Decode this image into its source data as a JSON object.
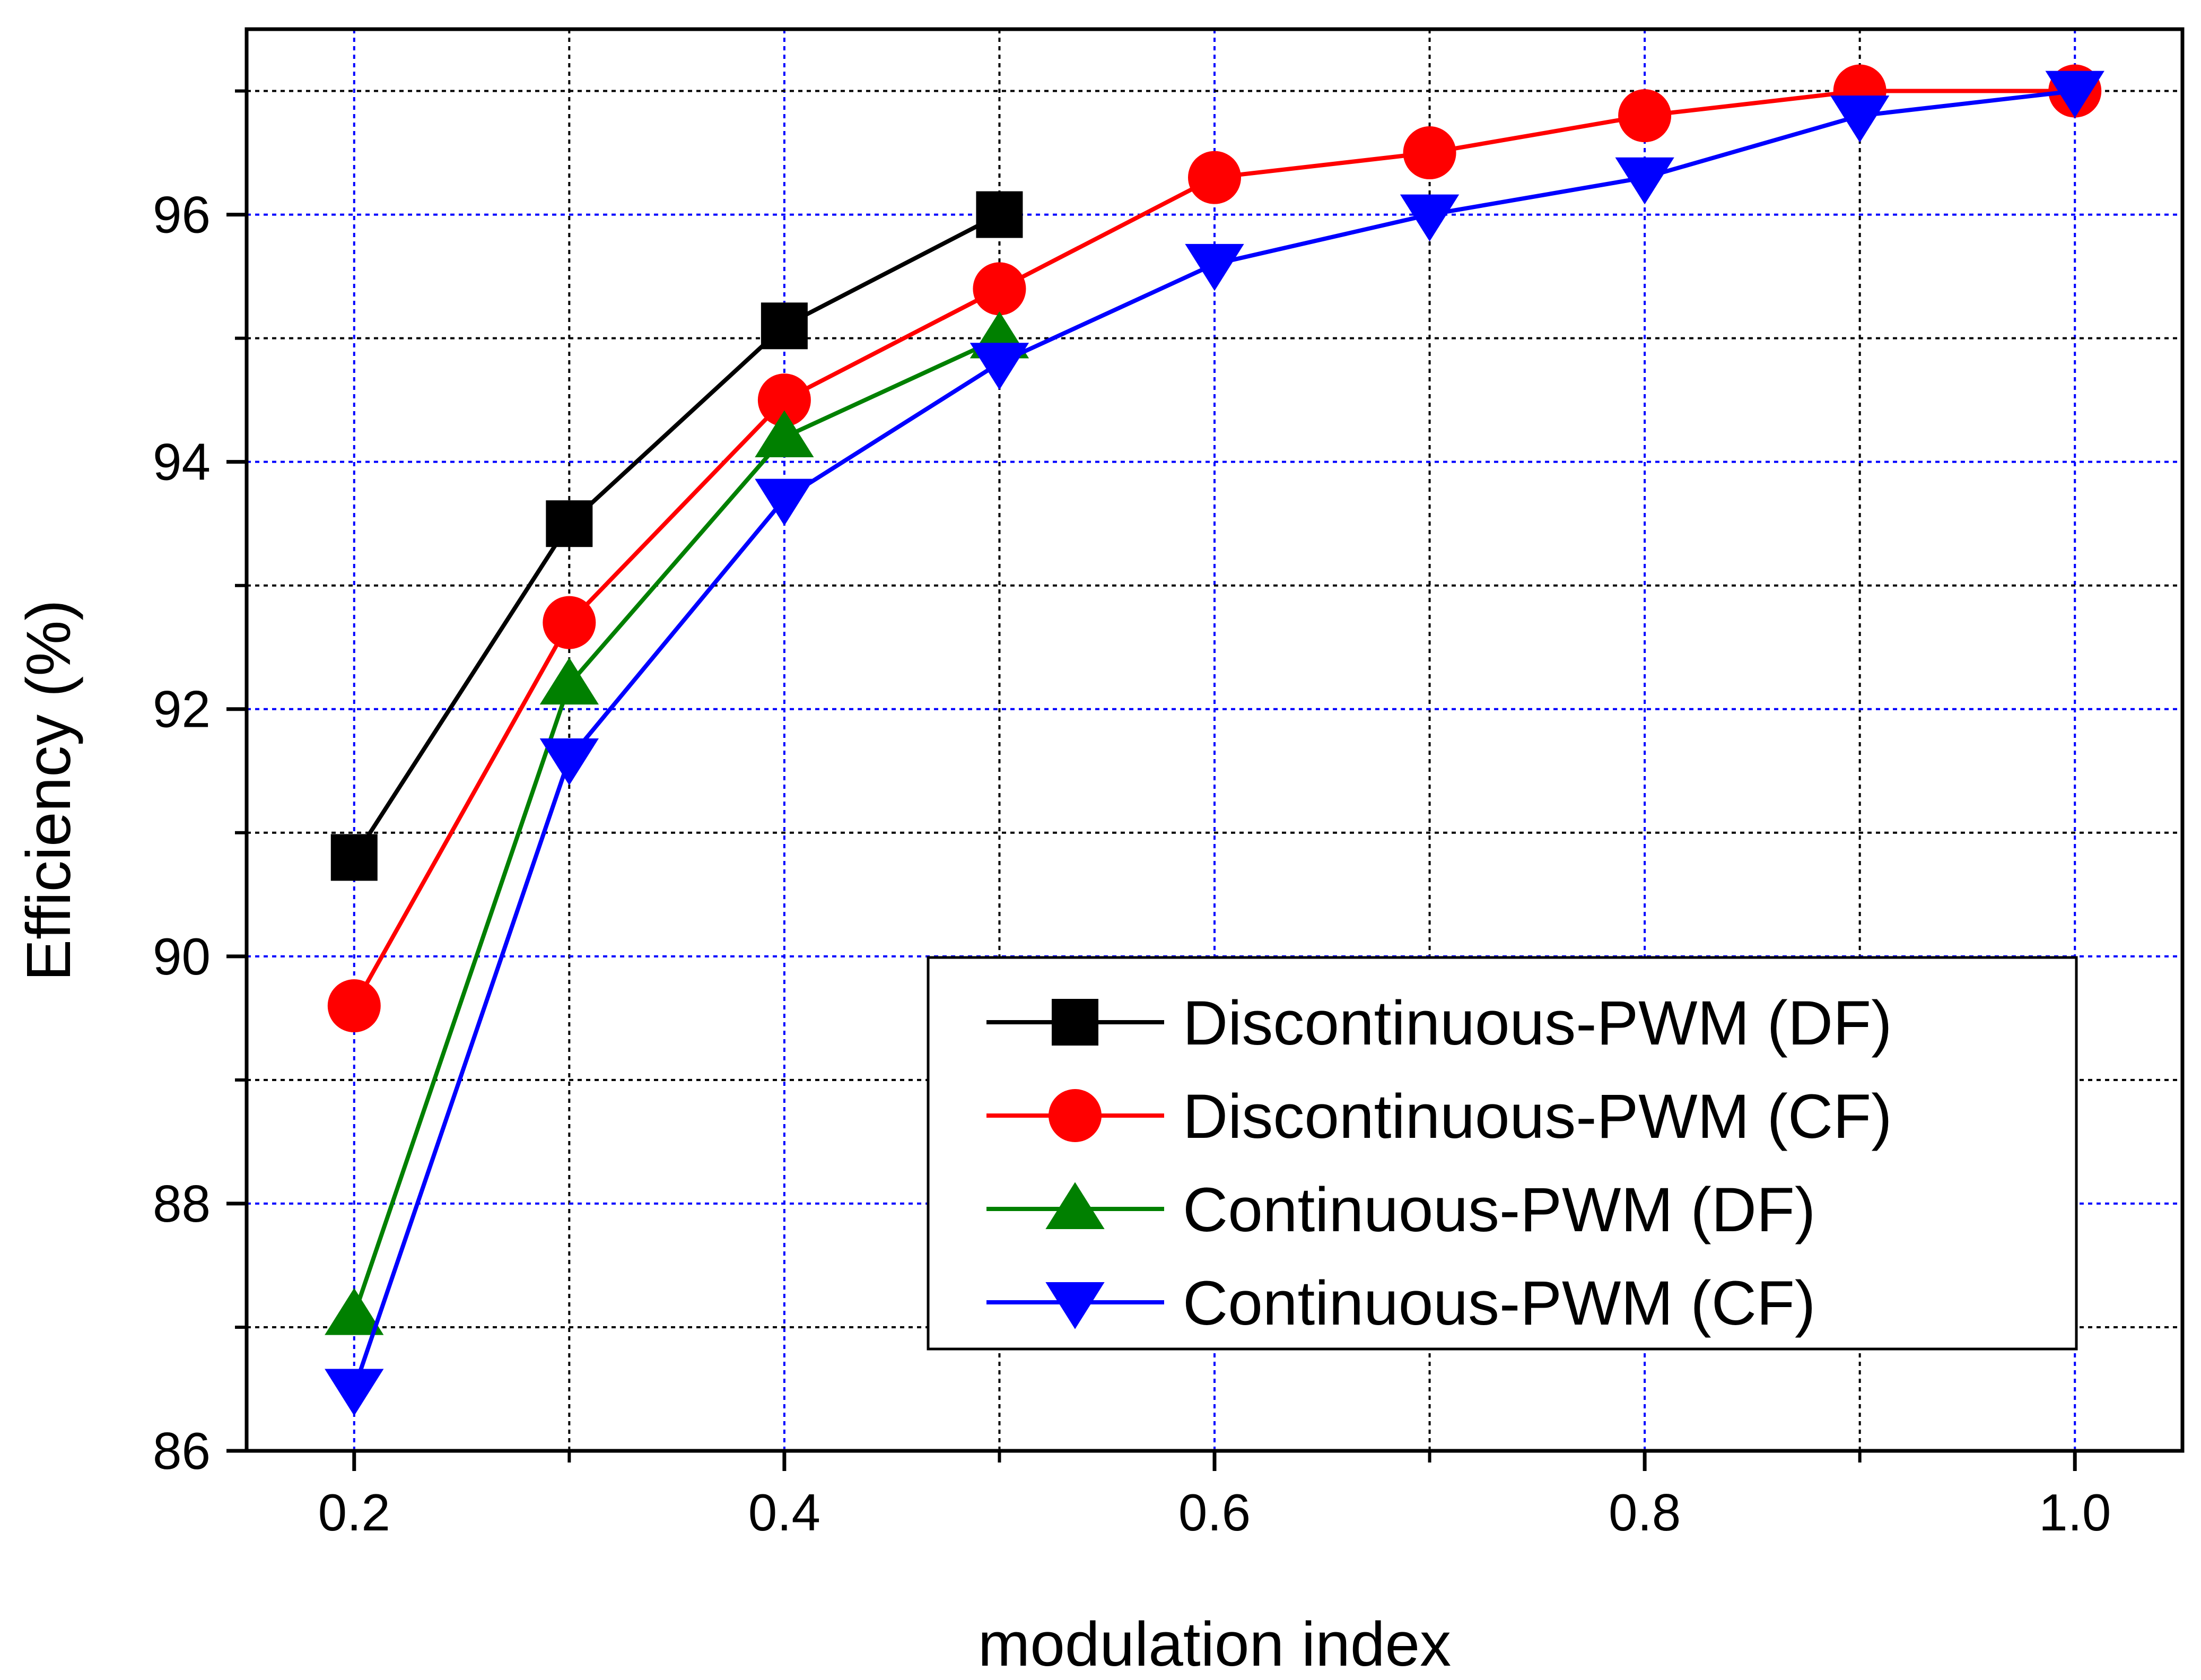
{
  "chart_data": {
    "type": "line",
    "title": "",
    "xlabel": "modulation index",
    "ylabel": "Efficiency (%)",
    "xlim": [
      0.15,
      1.05
    ],
    "ylim": [
      86,
      97.5
    ],
    "x_ticks": [
      0.2,
      0.4,
      0.6,
      0.8,
      1.0
    ],
    "x_tick_labels": [
      "0.2",
      "0.4",
      "0.6",
      "0.8",
      "1.0"
    ],
    "x_minor_ticks": [
      0.3,
      0.5,
      0.7,
      0.9
    ],
    "y_ticks": [
      86,
      88,
      90,
      92,
      94,
      96
    ],
    "y_tick_labels": [
      "86",
      "88",
      "90",
      "92",
      "94",
      "96"
    ],
    "y_minor_ticks": [
      87,
      89,
      91,
      93,
      95,
      97
    ],
    "grid": true,
    "legend_position": "lower-right",
    "series": [
      {
        "name": "Discontinuous-PWM (DF)",
        "color": "#000000",
        "marker": "square",
        "x": [
          0.2,
          0.3,
          0.4,
          0.5
        ],
        "y": [
          90.8,
          93.5,
          95.1,
          96.0
        ]
      },
      {
        "name": "Discontinuous-PWM (CF)",
        "color": "#ff0000",
        "marker": "circle",
        "x": [
          0.2,
          0.3,
          0.4,
          0.5,
          0.6,
          0.7,
          0.8,
          0.9,
          1.0
        ],
        "y": [
          89.6,
          92.7,
          94.5,
          95.4,
          96.3,
          96.5,
          96.8,
          97.0,
          97.0
        ]
      },
      {
        "name": "Continuous-PWM (DF)",
        "color": "#008000",
        "marker": "triangle-up",
        "x": [
          0.2,
          0.3,
          0.4,
          0.5
        ],
        "y": [
          87.1,
          92.2,
          94.2,
          95.0
        ]
      },
      {
        "name": "Continuous-PWM (CF)",
        "color": "#0000ff",
        "marker": "triangle-down",
        "x": [
          0.2,
          0.3,
          0.4,
          0.5,
          0.6,
          0.7,
          0.8,
          0.9,
          1.0
        ],
        "y": [
          86.5,
          91.6,
          93.7,
          94.8,
          95.6,
          96.0,
          96.3,
          96.8,
          97.0
        ]
      }
    ]
  }
}
